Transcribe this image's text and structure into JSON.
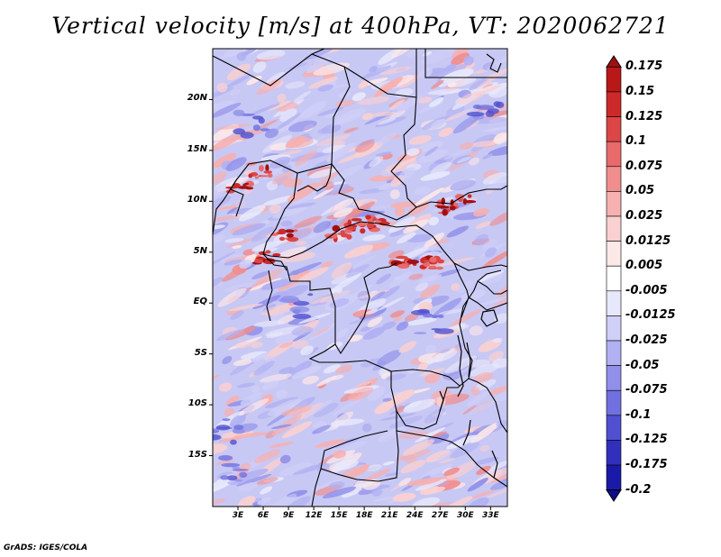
{
  "title": "Vertical velocity [m/s] at 400hPa, VT: 2020062721",
  "credit": "GrADS: IGES/COLA",
  "map": {
    "lat_labels": [
      "20N",
      "15N",
      "10N",
      "5N",
      "EQ",
      "5S",
      "10S",
      "15S"
    ],
    "lat_values": [
      20,
      15,
      10,
      5,
      0,
      -5,
      -10,
      -15
    ],
    "lon_labels": [
      "3E",
      "6E",
      "9E",
      "12E",
      "15E",
      "18E",
      "21E",
      "24E",
      "27E",
      "30E",
      "33E"
    ],
    "lon_values": [
      3,
      6,
      9,
      12,
      15,
      18,
      21,
      24,
      27,
      30,
      33
    ],
    "lon_range": [
      0,
      35
    ],
    "lat_range": [
      -20,
      25
    ]
  },
  "colorbar": {
    "labels": [
      "0.175",
      "0.15",
      "0.125",
      "0.1",
      "0.075",
      "0.05",
      "0.025",
      "0.0125",
      "0.005",
      "-0.005",
      "-0.0125",
      "-0.025",
      "-0.05",
      "-0.075",
      "-0.1",
      "-0.125",
      "-0.175",
      "-0.2"
    ],
    "colors": [
      "#a01010",
      "#b81818",
      "#cc2a2a",
      "#dc4646",
      "#e86a6a",
      "#f08e8e",
      "#f6b0b0",
      "#fad0d0",
      "#fde8e8",
      "#ffffff",
      "#e8e8fc",
      "#cfcff8",
      "#b0b0f2",
      "#9090ea",
      "#7070e0",
      "#5050d0",
      "#3030bc",
      "#1a1aa8",
      "#0d0d8c"
    ]
  }
}
